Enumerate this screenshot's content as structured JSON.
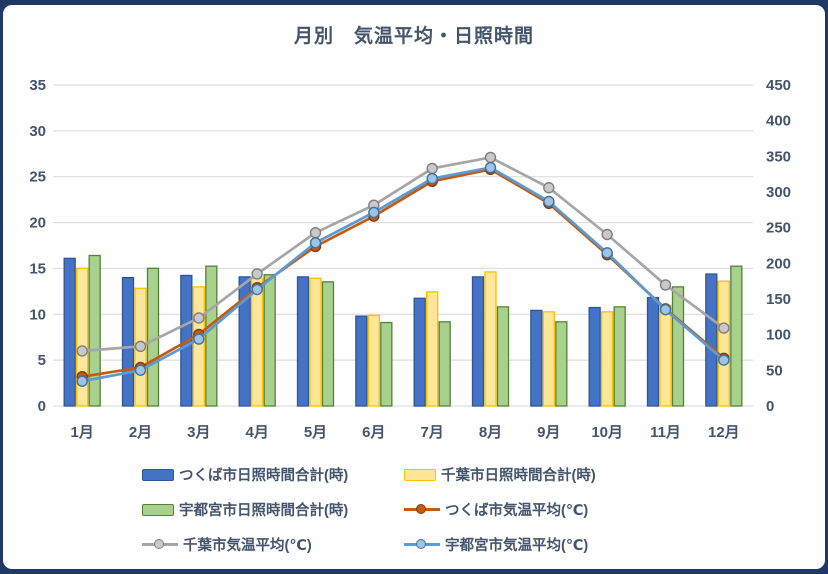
{
  "chart": {
    "title": "月別　気温平均・日照時間"
  },
  "chart_data": {
    "type": "combo-bar-line",
    "title": "月別　気温平均・日照時間",
    "categories": [
      "1月",
      "2月",
      "3月",
      "4月",
      "5月",
      "6月",
      "7月",
      "8月",
      "9月",
      "10月",
      "11月",
      "12月"
    ],
    "bar_series": [
      {
        "name": "つくば市日照時間合計(時)",
        "axis": "right",
        "fill": "#4472C4",
        "stroke": "#2F5597",
        "values": [
          207,
          180,
          183,
          181,
          181,
          126,
          151,
          181,
          134,
          138,
          152,
          185
        ]
      },
      {
        "name": "千葉市日照時間合計(時)",
        "axis": "right",
        "fill": "#FFE699",
        "stroke": "#FFC000",
        "values": [
          193,
          165,
          167,
          179,
          179,
          127,
          160,
          188,
          132,
          132,
          141,
          175
        ]
      },
      {
        "name": "宇都宮市日照時間合計(時)",
        "axis": "right",
        "fill": "#A9D18E",
        "stroke": "#548235",
        "values": [
          211,
          193,
          196,
          184,
          174,
          117,
          118,
          139,
          118,
          139,
          167,
          196
        ]
      }
    ],
    "line_series": [
      {
        "name": "つくば市気温平均(℃)",
        "axis": "left",
        "line": "#C55A11",
        "marker_fill": "#C55A11",
        "marker_stroke": "#843C0C",
        "values": [
          3.2,
          4.2,
          7.8,
          12.9,
          17.4,
          20.7,
          24.5,
          25.8,
          22.1,
          16.5,
          10.6,
          5.2
        ]
      },
      {
        "name": "千葉市気温平均(℃)",
        "axis": "left",
        "line": "#A6A6A6",
        "marker_fill": "#C9C9C9",
        "marker_stroke": "#7F7F7F",
        "values": [
          6.0,
          6.5,
          9.6,
          14.4,
          18.9,
          21.9,
          25.9,
          27.1,
          23.8,
          18.7,
          13.2,
          8.5
        ]
      },
      {
        "name": "宇都宮市気温平均(℃)",
        "axis": "left",
        "line": "#5B9BD5",
        "marker_fill": "#9DC3E6",
        "marker_stroke": "#41719C",
        "values": [
          2.7,
          3.9,
          7.3,
          12.7,
          17.8,
          21.1,
          24.8,
          26.0,
          22.3,
          16.7,
          10.5,
          5.0
        ]
      }
    ],
    "left_axis": {
      "min": 0,
      "max": 35,
      "labels": [
        "0",
        "5",
        "10",
        "15",
        "20",
        "25",
        "30",
        "35"
      ]
    },
    "right_axis": {
      "min": 0,
      "max": 450,
      "labels": [
        "0",
        "50",
        "100",
        "150",
        "200",
        "250",
        "300",
        "350",
        "400",
        "450"
      ]
    },
    "grid": true,
    "legend_position": "bottom"
  },
  "legend": {
    "items": [
      {
        "label": "つくば市日照時間合計(時)",
        "swatch": "bar:0"
      },
      {
        "label": "千葉市日照時間合計(時)",
        "swatch": "bar:1"
      },
      {
        "label": "宇都宮市日照時間合計(時)",
        "swatch": "bar:2"
      },
      {
        "label": "つくば市気温平均(℃)",
        "swatch": "line:0"
      },
      {
        "label": "千葉市気温平均(℃)",
        "swatch": "line:1"
      },
      {
        "label": "宇都宮市気温平均(℃)",
        "swatch": "line:2"
      }
    ]
  },
  "colors": {
    "frame": "#1F3864",
    "text": "#44546A",
    "gridline": "#D9D9D9",
    "background": "#FEFEFE"
  }
}
